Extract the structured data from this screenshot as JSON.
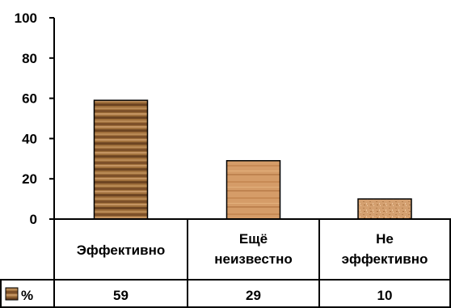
{
  "chart_data": {
    "type": "bar",
    "categories": [
      [
        "Эффективно"
      ],
      [
        "Ещё",
        "неизвестно"
      ],
      [
        "Не",
        "эффективно"
      ]
    ],
    "series": [
      {
        "name": "%",
        "values": [
          59,
          29,
          10
        ]
      }
    ],
    "data_table": {
      "row_label": "%",
      "values": [
        "59",
        "29",
        "10"
      ]
    },
    "y_ticks": [
      "0",
      "20",
      "40",
      "60",
      "80",
      "100"
    ],
    "ylim": [
      0,
      100
    ],
    "grid": false,
    "legend": "data-table-row",
    "colors": {
      "bar_fills": [
        "#a0703c",
        "#d59c68",
        "#d4a070"
      ],
      "bar_stroke": "#000000"
    },
    "textures": [
      "wood-dark",
      "wood-light",
      "granite"
    ]
  }
}
